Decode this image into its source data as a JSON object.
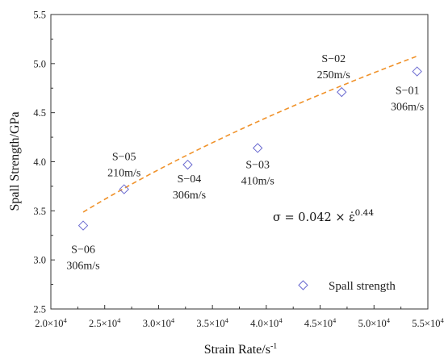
{
  "chart_data": {
    "type": "scatter",
    "xlabel": "Strain Rate/s",
    "xlabel_sup": "-1",
    "ylabel": "Spall Strength/GPa",
    "xlim": [
      20000,
      55000
    ],
    "ylim": [
      2.5,
      5.5
    ],
    "x_ticks": [
      {
        "value": 20000,
        "label": "2.0×10"
      },
      {
        "value": 25000,
        "label": "2.5×10"
      },
      {
        "value": 30000,
        "label": "3.0×10"
      },
      {
        "value": 35000,
        "label": "3.5×10"
      },
      {
        "value": 40000,
        "label": "4.0×10"
      },
      {
        "value": 45000,
        "label": "4.5×10"
      },
      {
        "value": 50000,
        "label": "5.0×10"
      },
      {
        "value": 55000,
        "label": "5.5×10"
      }
    ],
    "x_tick_exponent": "4",
    "y_ticks": [
      {
        "value": 2.5,
        "label": "2.5"
      },
      {
        "value": 3.0,
        "label": "3.0"
      },
      {
        "value": 3.5,
        "label": "3.5"
      },
      {
        "value": 4.0,
        "label": "4.0"
      },
      {
        "value": 4.5,
        "label": "4.5"
      },
      {
        "value": 5.0,
        "label": "5.0"
      },
      {
        "value": 5.5,
        "label": "5.5"
      }
    ],
    "series": [
      {
        "name": "Spall strength",
        "color": "#6a6ad0",
        "marker": "diamond-open",
        "points": [
          {
            "x": 23000,
            "y": 3.35,
            "id": "S−06",
            "velocity": "306m/s"
          },
          {
            "x": 26800,
            "y": 3.72,
            "id": "S−05",
            "velocity": "210m/s"
          },
          {
            "x": 32700,
            "y": 3.97,
            "id": "S−04",
            "velocity": "306m/s"
          },
          {
            "x": 39200,
            "y": 4.14,
            "id": "S−03",
            "velocity": "410m/s"
          },
          {
            "x": 47000,
            "y": 4.71,
            "id": "S−02",
            "velocity": "250m/s"
          },
          {
            "x": 54000,
            "y": 4.92,
            "id": "S−01",
            "velocity": "306m/s"
          }
        ]
      }
    ],
    "fit": {
      "color": "#f0922a",
      "style": "dashed",
      "coefficient": 0.042,
      "exponent": 0.44,
      "x_range": [
        23000,
        54000
      ],
      "equation_lhs": "σ = 0.042 × ε̇",
      "equation_exp": "0.44"
    },
    "legend": {
      "position": "bottom-right",
      "entries": [
        "Spall strength"
      ]
    },
    "grid": false
  }
}
